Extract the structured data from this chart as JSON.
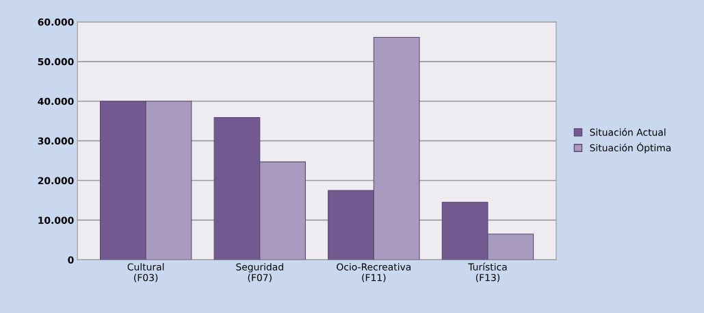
{
  "chart_data": {
    "type": "bar",
    "categories": [
      "Cultural\n(F03)",
      "Seguridad\n(F07)",
      "Ocio-Recreativa\n(F11)",
      "Turística\n(F13)"
    ],
    "series": [
      {
        "name": "Situación Actual",
        "color": "#72598f",
        "values": [
          40000,
          35900,
          17500,
          14500
        ]
      },
      {
        "name": "Situación Óptima",
        "color": "#a99bc0",
        "values": [
          40000,
          24700,
          56100,
          6500
        ]
      }
    ],
    "ylim": [
      0,
      60000
    ],
    "yticks": [
      {
        "value": 0,
        "label": "0"
      },
      {
        "value": 10000,
        "label": "10.000"
      },
      {
        "value": 20000,
        "label": "20.000"
      },
      {
        "value": 30000,
        "label": "30.000"
      },
      {
        "value": 40000,
        "label": "40.000"
      },
      {
        "value": 50000,
        "label": "50.000"
      },
      {
        "value": 60000,
        "label": "60.000"
      }
    ],
    "grid": "y",
    "legend": "right"
  }
}
